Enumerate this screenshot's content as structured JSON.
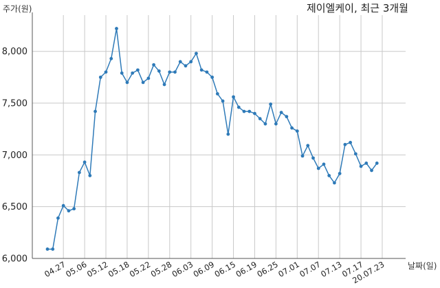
{
  "chart_data": {
    "type": "line",
    "title": "제이엘케이, 최근 3개월",
    "ylabel": "주가(원)",
    "xlabel": "날짜(일)",
    "ylim": [
      6000,
      8350
    ],
    "yticks": [
      6000,
      6500,
      7000,
      7500,
      8000
    ],
    "ytick_labels": [
      "6,000",
      "6,500",
      "7,000",
      "7,500",
      "8,000"
    ],
    "grid": true,
    "line_color": "#2e7ab8",
    "x_tick_labels": [
      "04.27",
      "05.06",
      "05.12",
      "05.18",
      "05.22",
      "05.28",
      "06.03",
      "06.09",
      "06.15",
      "06.19",
      "06.25",
      "07.01",
      "07.07",
      "07.13",
      "07.17",
      "20.07.23"
    ],
    "x_tick_index": [
      3,
      7,
      11,
      15,
      19,
      23,
      27,
      31,
      35,
      39,
      43,
      47,
      51,
      55,
      59,
      63
    ],
    "series": [
      {
        "values": [
          6090,
          6090,
          6390,
          6510,
          6460,
          6480,
          6830,
          6930,
          6800,
          7420,
          7750,
          7800,
          7930,
          8220,
          7790,
          7700,
          7790,
          7820,
          7700,
          7740,
          7870,
          7810,
          7680,
          7800,
          7800,
          7900,
          7860,
          7900,
          7980,
          7820,
          7800,
          7750,
          7590,
          7520,
          7200,
          7560,
          7460,
          7420,
          7420,
          7400,
          7350,
          7300,
          7490,
          7300,
          7410,
          7370,
          7260,
          7230,
          6990,
          7090,
          6970,
          6870,
          6910,
          6800,
          6730,
          6820,
          7100,
          7120,
          7010,
          6890,
          6920,
          6850,
          6920
        ]
      }
    ]
  }
}
